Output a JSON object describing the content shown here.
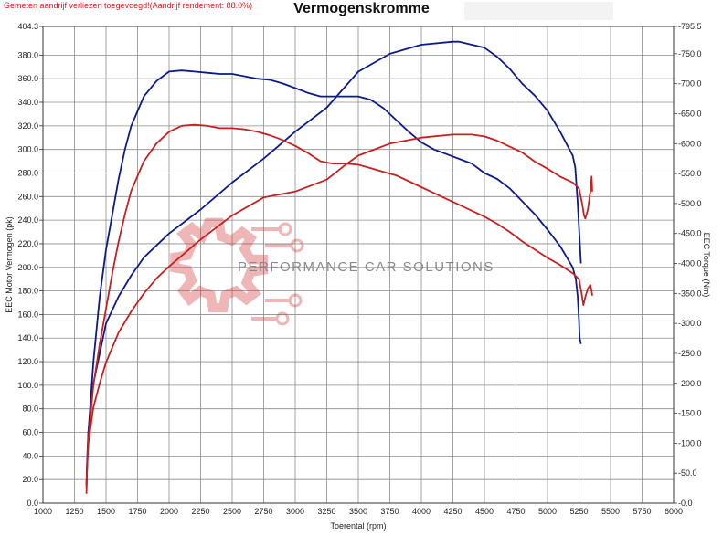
{
  "header": {
    "note": "Gemeten aandrijf verliezen toegevoegd!(Aandrijf rendement: 88.0%)",
    "title": "Vermogenskromme"
  },
  "watermark": {
    "text": "PERFORMANCE CAR SOLUTIONS",
    "icon": "gear-logo-icon"
  },
  "chart_data": {
    "type": "line",
    "title": "Vermogenskromme",
    "xlabel": "Toerental (rpm)",
    "ylabel": "EEC Motor Vermogen (pk)",
    "y2label": "EEC Torque (Nm)",
    "xlim": [
      1000,
      6000
    ],
    "ylim": [
      0,
      404.3
    ],
    "y2lim": [
      0,
      795.5
    ],
    "x_ticks": [
      "1000",
      "1250",
      "1500",
      "1750",
      "2000",
      "2250",
      "2500",
      "2750",
      "3000",
      "3250",
      "3500",
      "3750",
      "4000",
      "4250",
      "4500",
      "4750",
      "5000",
      "5250",
      "5500",
      "5750",
      "6000"
    ],
    "y_ticks": [
      "0.0",
      "20.0",
      "40.0",
      "60.0",
      "80.0",
      "100.0",
      "120.0",
      "140.0",
      "160.0",
      "180.0",
      "200.0",
      "220.0",
      "240.0",
      "260.0",
      "280.0",
      "300.0",
      "320.0",
      "340.0",
      "360.0",
      "380.0",
      "404.3"
    ],
    "y2_ticks": [
      "0.0",
      "50.0",
      "100.0",
      "150.0",
      "200.0",
      "250.0",
      "300.0",
      "350.0",
      "400.0",
      "450.0",
      "500.0",
      "550.0",
      "600.0",
      "650.0",
      "700.0",
      "750.0",
      "795.5"
    ],
    "grid": true,
    "colors": {
      "blue": "#0d1a8c",
      "red": "#c82020"
    },
    "series": [
      {
        "axis": "left",
        "color": "#0d1a8c",
        "x": [
          1345,
          1350,
          1360,
          1400,
          1450,
          1500,
          1550,
          1600,
          1650,
          1700,
          1800,
          1900,
          2000,
          2100,
          2200,
          2300,
          2400,
          2500,
          2600,
          2700,
          2800,
          2900,
          3000,
          3100,
          3200,
          3300,
          3400,
          3500,
          3600,
          3700,
          3800,
          3900,
          4000,
          4100,
          4200,
          4300,
          4400,
          4500,
          4600,
          4700,
          4800,
          4900,
          5000,
          5100,
          5200,
          5225,
          5240,
          5250,
          5255,
          5265
        ],
        "y": [
          15,
          32,
          60,
          120,
          175,
          215,
          245,
          275,
          300,
          320,
          345,
          358,
          366,
          367,
          366,
          365,
          364,
          364,
          362,
          360,
          359,
          356,
          352,
          348,
          345,
          345,
          345,
          345,
          342,
          335,
          325,
          315,
          306,
          300,
          296,
          292,
          288,
          280,
          275,
          267,
          256,
          245,
          232,
          218,
          200,
          190,
          175,
          155,
          140,
          135
        ]
      },
      {
        "axis": "right",
        "color": "#0d1a8c",
        "x": [
          1345,
          1350,
          1360,
          1400,
          1450,
          1500,
          1600,
          1700,
          1800,
          1900,
          2000,
          2250,
          2500,
          2750,
          3000,
          3250,
          3500,
          3750,
          4000,
          4250,
          4300,
          4400,
          4500,
          4600,
          4700,
          4800,
          4900,
          5000,
          5100,
          5200,
          5220,
          5240,
          5260,
          5265
        ],
        "y": [
          30,
          70,
          120,
          200,
          250,
          300,
          345,
          380,
          410,
          430,
          450,
          490,
          535,
          575,
          620,
          660,
          720,
          750,
          765,
          770,
          770,
          765,
          760,
          745,
          725,
          700,
          680,
          655,
          620,
          580,
          560,
          500,
          420,
          400
        ]
      },
      {
        "axis": "left",
        "color": "#c82020",
        "x": [
          1345,
          1350,
          1360,
          1400,
          1450,
          1500,
          1550,
          1600,
          1650,
          1700,
          1800,
          1900,
          2000,
          2100,
          2200,
          2300,
          2400,
          2500,
          2600,
          2700,
          2800,
          2900,
          3000,
          3100,
          3200,
          3300,
          3400,
          3500,
          3600,
          3700,
          3800,
          3900,
          4000,
          4100,
          4200,
          4300,
          4400,
          4500,
          4600,
          4700,
          4800,
          4900,
          5000,
          5100,
          5200,
          5250,
          5270,
          5285,
          5300,
          5320,
          5340,
          5350,
          5355
        ],
        "y": [
          8,
          30,
          55,
          100,
          135,
          165,
          195,
          222,
          245,
          265,
          290,
          305,
          315,
          320,
          321,
          320,
          318,
          318,
          317,
          315,
          312,
          308,
          303,
          297,
          290,
          288,
          288,
          287,
          284,
          281,
          278,
          273,
          268,
          263,
          258,
          253,
          248,
          243,
          237,
          230,
          222,
          215,
          208,
          202,
          195,
          190,
          178,
          168,
          175,
          182,
          185,
          180,
          176
        ]
      },
      {
        "axis": "right",
        "color": "#c82020",
        "x": [
          1345,
          1350,
          1360,
          1400,
          1450,
          1500,
          1600,
          1700,
          1800,
          1900,
          2000,
          2250,
          2500,
          2750,
          3000,
          3250,
          3400,
          3500,
          3750,
          4000,
          4250,
          4400,
          4500,
          4600,
          4700,
          4800,
          4900,
          5000,
          5100,
          5200,
          5250,
          5275,
          5290,
          5300,
          5320,
          5340,
          5350,
          5355
        ],
        "y": [
          25,
          60,
          100,
          160,
          200,
          235,
          285,
          320,
          350,
          375,
          395,
          440,
          480,
          510,
          520,
          540,
          565,
          580,
          600,
          610,
          615,
          615,
          612,
          605,
          595,
          585,
          570,
          558,
          545,
          535,
          525,
          500,
          480,
          475,
          490,
          520,
          545,
          520
        ]
      }
    ]
  }
}
